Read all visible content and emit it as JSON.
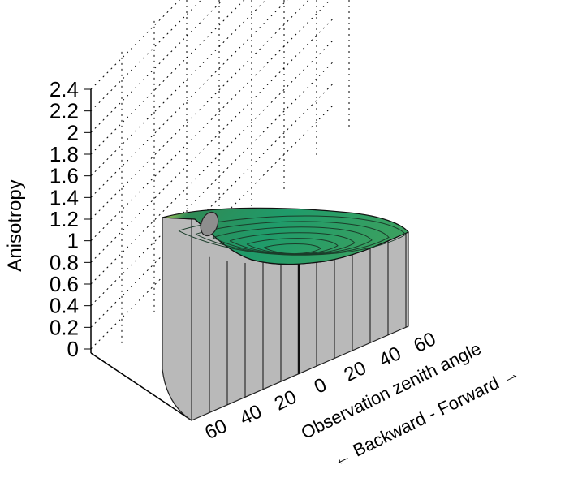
{
  "chart_data": {
    "type": "surface3d",
    "title": "",
    "zlabel": "Anisotropy",
    "xlabel": "Observation zenith angle",
    "xlabel2": "← Backward - Forward →",
    "z_ticks": [
      "0",
      "0.2",
      "0.4",
      "0.6",
      "0.8",
      "1",
      "1.2",
      "1.4",
      "1.6",
      "1.8",
      "2",
      "2.2",
      "2.4"
    ],
    "zlim": [
      0,
      2.4
    ],
    "x_ticks": [
      "60",
      "40",
      "20",
      "0",
      "20",
      "40",
      "60"
    ],
    "x_values": [
      -60,
      -40,
      -20,
      0,
      20,
      40,
      60
    ],
    "x_range": [
      -70,
      70
    ],
    "grid": true,
    "surface": {
      "max_value": 1.25,
      "min_value": 0.85,
      "hotspot_position": "backward, near 60 deg",
      "contour_levels": [
        0.9,
        0.95,
        1.0,
        1.05,
        1.1,
        1.15
      ]
    },
    "colors": {
      "surface_low": "#1f9b6a",
      "surface_mid": "#2f8a55",
      "surface_high": "#d7e35a",
      "side_wall": "#b9b9b9",
      "grid": "#000000"
    }
  }
}
